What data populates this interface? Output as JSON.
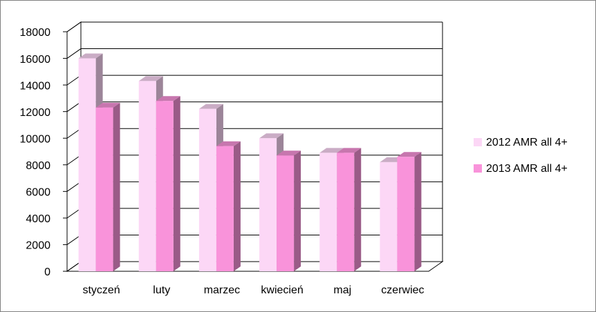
{
  "chart_data": {
    "type": "bar3d",
    "categories": [
      "styczeń",
      "luty",
      "marzec",
      "kwiecień",
      "maj",
      "czerwiec"
    ],
    "series": [
      {
        "name": "2012 AMR all 4+",
        "color": "#fcd7f6",
        "values": [
          16000,
          14300,
          12200,
          10000,
          8900,
          8200
        ]
      },
      {
        "name": "2013 AMR all 4+",
        "color": "#f993da",
        "values": [
          12300,
          12800,
          9400,
          8700,
          8900,
          8600
        ]
      }
    ],
    "ylim": [
      0,
      18000
    ],
    "yticks": [
      0,
      2000,
      4000,
      6000,
      8000,
      10000,
      12000,
      14000,
      16000,
      18000
    ],
    "grid": true,
    "legend": "right"
  }
}
